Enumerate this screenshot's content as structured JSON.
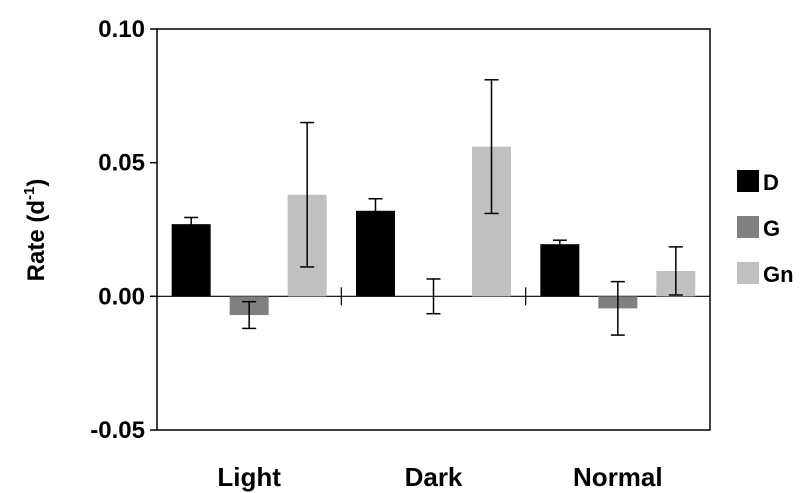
{
  "chart_data": {
    "type": "bar",
    "title": "",
    "xlabel": "",
    "ylabel": "Rate (d",
    "ylabel_sup": "-1",
    "ylabel_close": ")",
    "ylim": [
      -0.05,
      0.1
    ],
    "y_ticks": [
      {
        "value": -0.05,
        "label": "-0.05"
      },
      {
        "value": 0.0,
        "label": "0.00"
      },
      {
        "value": 0.05,
        "label": "0.05"
      },
      {
        "value": 0.1,
        "label": "0.10"
      }
    ],
    "categories": [
      "Light",
      "Dark",
      "Normal"
    ],
    "series": [
      {
        "name": "D",
        "color": "#000000",
        "values": [
          0.027,
          0.032,
          0.0195
        ],
        "errors": [
          0.0025,
          0.0045,
          0.0015
        ]
      },
      {
        "name": "G",
        "color": "#808080",
        "values": [
          -0.007,
          0.0,
          -0.0045
        ],
        "errors": [
          0.005,
          0.0065,
          0.01
        ]
      },
      {
        "name": "Gn",
        "color": "#c0c0c0",
        "values": [
          0.038,
          0.056,
          0.0095
        ],
        "errors": [
          0.027,
          0.025,
          0.009
        ]
      }
    ],
    "grid": false,
    "legend": "right"
  }
}
